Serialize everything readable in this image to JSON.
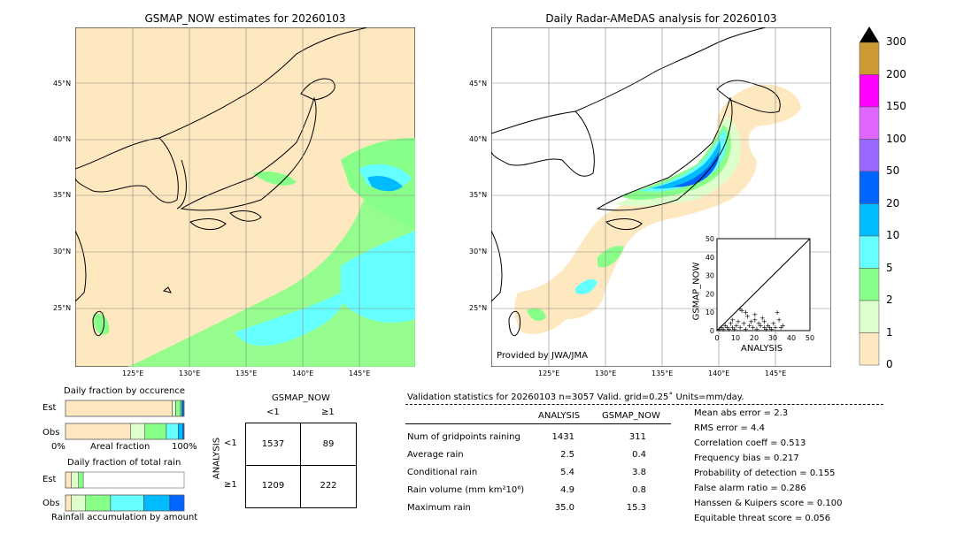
{
  "left_map": {
    "title": "GSMAP_NOW estimates for 20260103",
    "lat_labels": [
      "45°N",
      "40°N",
      "35°N",
      "30°N",
      "25°N"
    ],
    "lon_labels": [
      "125°E",
      "130°E",
      "135°E",
      "140°E",
      "145°E"
    ]
  },
  "right_map": {
    "title": "Daily Radar-AMeDAS analysis for 20260103",
    "lat_labels": [
      "45°N",
      "40°N",
      "35°N",
      "30°N",
      "25°N"
    ],
    "lon_labels": [
      "125°E",
      "130°E",
      "135°E",
      "140°E",
      "145°E"
    ],
    "credit": "Provided by JWA/JMA"
  },
  "colorbar": {
    "levels": [
      "300",
      "200",
      "150",
      "100",
      "50",
      "20",
      "10",
      "5",
      "2",
      "1",
      "0"
    ],
    "colors": [
      "#cc9933",
      "#ff00ff",
      "#e066ff",
      "#9966ff",
      "#0066ff",
      "#00bbff",
      "#66ffff",
      "#88ff88",
      "#ddffcc",
      "#ffe8c0"
    ],
    "extend_color": "#000000"
  },
  "chart_data": [
    {
      "type": "scatter",
      "title": "",
      "xlabel": "ANALYSIS",
      "ylabel": "GSMAP_NOW",
      "xlim": [
        0,
        50
      ],
      "ylim": [
        0,
        50
      ],
      "x_ticks": [
        "0",
        "10",
        "20",
        "30",
        "40",
        "50"
      ],
      "y_ticks": [
        "0",
        "10",
        "20",
        "30",
        "40",
        "50"
      ],
      "points": [
        [
          1,
          1
        ],
        [
          2,
          2
        ],
        [
          3,
          1
        ],
        [
          4,
          3
        ],
        [
          5,
          2
        ],
        [
          6,
          1
        ],
        [
          7,
          4
        ],
        [
          8,
          2
        ],
        [
          9,
          1
        ],
        [
          10,
          3
        ],
        [
          11,
          5
        ],
        [
          12,
          2
        ],
        [
          13,
          11
        ],
        [
          14,
          4
        ],
        [
          15,
          1
        ],
        [
          16,
          8
        ],
        [
          17,
          3
        ],
        [
          18,
          5
        ],
        [
          19,
          2
        ],
        [
          20,
          6
        ],
        [
          21,
          1
        ],
        [
          22,
          4
        ],
        [
          23,
          3
        ],
        [
          24,
          7
        ],
        [
          25,
          2
        ],
        [
          26,
          1
        ],
        [
          27,
          3
        ],
        [
          28,
          2
        ],
        [
          29,
          1
        ],
        [
          30,
          4
        ],
        [
          31,
          2
        ],
        [
          32,
          10
        ],
        [
          33,
          6
        ],
        [
          34,
          2
        ],
        [
          35,
          3
        ],
        [
          12,
          12
        ],
        [
          15,
          10
        ],
        [
          20,
          9
        ],
        [
          8,
          6
        ],
        [
          25,
          5
        ]
      ]
    },
    {
      "type": "bar",
      "title": "Daily fraction by occurence",
      "categories": [
        "Est",
        "Obs"
      ],
      "series_colors": [
        "#ffe8c0",
        "#ddffcc",
        "#88ff88",
        "#66ffff",
        "#00bbff",
        "#0066ff"
      ],
      "values": [
        [
          0.9,
          0.03,
          0.04,
          0.01,
          0.01,
          0.01
        ],
        [
          0.55,
          0.12,
          0.18,
          0.1,
          0.04,
          0.01
        ]
      ],
      "xlabel_left": "0%",
      "xlabel_mid": "Areal fraction",
      "xlabel_right": "100%"
    },
    {
      "type": "bar",
      "title": "Daily fraction of total rain",
      "categories": [
        "Est",
        "Obs"
      ],
      "series_colors": [
        "#ffe8c0",
        "#ddffcc",
        "#88ff88",
        "#66ffff",
        "#00bbff",
        "#0066ff"
      ],
      "values": [
        [
          0.05,
          0.06,
          0.04,
          0.0,
          0.0,
          0.0
        ],
        [
          0.05,
          0.12,
          0.21,
          0.28,
          0.22,
          0.12
        ]
      ],
      "xlabel_mid": "Rainfall accumulation by amount"
    },
    {
      "type": "table",
      "title": "GSMAP_NOW",
      "col_headers": [
        "<1",
        "≥1"
      ],
      "row_label": "ANALYSIS",
      "row_headers": [
        "<1",
        "≥1"
      ],
      "cells": [
        [
          "1537",
          "89"
        ],
        [
          "1209",
          "222"
        ]
      ]
    }
  ],
  "validation": {
    "header": "Validation statistics for 20260103  n=3057 Valid. grid=0.25˚ Units=mm/day.",
    "col_analysis": "ANALYSIS",
    "col_gsmap": "GSMAP_NOW",
    "rows": [
      {
        "label": "Num of gridpoints raining",
        "analysis": "1431",
        "gsmap": "311"
      },
      {
        "label": "Average rain",
        "analysis": "2.5",
        "gsmap": "0.4"
      },
      {
        "label": "Conditional rain",
        "analysis": "5.4",
        "gsmap": "3.8"
      },
      {
        "label": "Rain volume (mm km²10⁶)",
        "analysis": "4.9",
        "gsmap": "0.8"
      },
      {
        "label": "Maximum rain",
        "analysis": "35.0",
        "gsmap": "15.3"
      }
    ],
    "scores": [
      "Mean abs error =    2.3",
      "RMS error =    4.4",
      "Correlation coeff =  0.513",
      "Frequency bias =  0.217",
      "Probability of detection =  0.155",
      "False alarm ratio =  0.286",
      "Hanssen & Kuipers score =  0.100",
      "Equitable threat score =  0.056"
    ]
  }
}
